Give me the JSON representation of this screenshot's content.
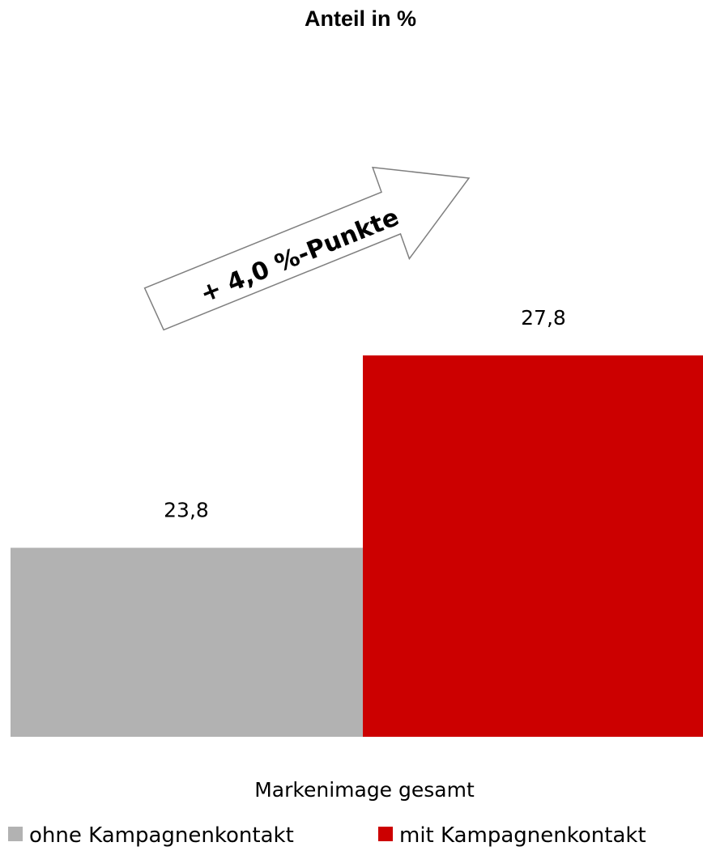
{
  "chart_data": {
    "type": "bar",
    "title": "Anteil in %",
    "categories": [
      "Markenimage gesamt"
    ],
    "series": [
      {
        "name": "ohne Kampagnenkontakt",
        "values": [
          23.8
        ],
        "labels": [
          "23,8"
        ],
        "color": "#b2b2b2"
      },
      {
        "name": "mit Kampagnenkontakt",
        "values": [
          27.8
        ],
        "labels": [
          "27,8"
        ],
        "color": "#cc0000"
      }
    ],
    "annotation": "+ 4,0 %-Punkte",
    "annotation_value": 4.0,
    "grid": false,
    "legend_position": "bottom"
  }
}
